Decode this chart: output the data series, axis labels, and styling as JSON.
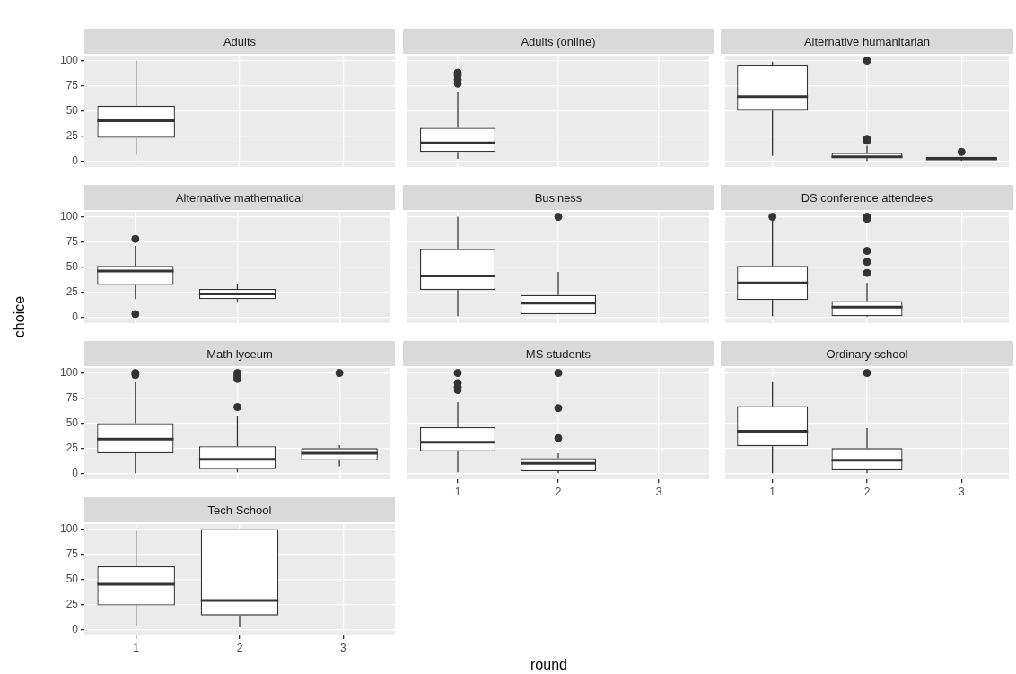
{
  "chart_data": [
    {
      "type": "box",
      "title": "Adults",
      "categories": [
        "1",
        "2",
        "3"
      ],
      "color": "#333333",
      "ylim": [
        -6,
        105
      ],
      "yticks": [
        0,
        25,
        50,
        75,
        100
      ],
      "grid": true,
      "tick_labels": "y",
      "boxes": [
        {
          "low": 6,
          "q1": 23,
          "median": 40,
          "q3": 55,
          "high": 100
        },
        null,
        null
      ]
    },
    {
      "type": "box",
      "title": "Adults (online)",
      "categories": [
        "1",
        "2",
        "3"
      ],
      "color": "#333333",
      "ylim": [
        -6,
        105
      ],
      "yticks": [
        0,
        25,
        50,
        75,
        100
      ],
      "grid": true,
      "tick_labels": false,
      "boxes": [
        {
          "low": 2,
          "q1": 9,
          "median": 18,
          "q3": 33,
          "high": 69,
          "outliers": [
            77,
            81,
            85,
            88
          ]
        },
        null,
        null
      ]
    },
    {
      "type": "box",
      "title": "Alternative humanitarian",
      "categories": [
        "1",
        "2",
        "3"
      ],
      "color": "#333333",
      "ylim": [
        -6,
        105
      ],
      "yticks": [
        0,
        25,
        50,
        75,
        100
      ],
      "grid": true,
      "tick_labels": false,
      "boxes": [
        {
          "low": 5,
          "q1": 50,
          "median": 64,
          "q3": 96,
          "high": 99
        },
        {
          "low": 0,
          "q1": 3,
          "median": 4,
          "q3": 8,
          "high": 15,
          "outliers": [
            20,
            22,
            100
          ]
        },
        {
          "low": 0,
          "q1": 1,
          "median": 2,
          "q3": 4,
          "high": 4,
          "outliers": [
            9
          ]
        }
      ]
    },
    {
      "type": "box",
      "title": "Alternative mathematical",
      "ylabel": "choice",
      "categories": [
        "1",
        "2",
        "3"
      ],
      "color": "#333333",
      "ylim": [
        -6,
        105
      ],
      "yticks": [
        0,
        25,
        50,
        75,
        100
      ],
      "grid": true,
      "tick_labels": "y",
      "boxes": [
        {
          "low": 18,
          "q1": 32,
          "median": 46,
          "q3": 51,
          "high": 71,
          "outliers": [
            3,
            78
          ]
        },
        {
          "low": 15,
          "q1": 18,
          "median": 23,
          "q3": 28,
          "high": 33
        },
        null
      ]
    },
    {
      "type": "box",
      "title": "Business",
      "categories": [
        "1",
        "2",
        "3"
      ],
      "color": "#333333",
      "ylim": [
        -6,
        105
      ],
      "yticks": [
        0,
        25,
        50,
        75,
        100
      ],
      "grid": true,
      "tick_labels": false,
      "boxes": [
        {
          "low": 1,
          "q1": 27,
          "median": 41,
          "q3": 68,
          "high": 100
        },
        {
          "low": 3,
          "q1": 3,
          "median": 14,
          "q3": 22,
          "high": 45,
          "outliers": [
            100
          ]
        },
        null
      ]
    },
    {
      "type": "box",
      "title": "DS conference attendees",
      "categories": [
        "1",
        "2",
        "3"
      ],
      "color": "#333333",
      "ylim": [
        -6,
        105
      ],
      "yticks": [
        0,
        25,
        50,
        75,
        100
      ],
      "grid": true,
      "tick_labels": false,
      "boxes": [
        {
          "low": 1,
          "q1": 17,
          "median": 34,
          "q3": 51,
          "high": 97,
          "outliers": [
            100
          ]
        },
        {
          "low": 0,
          "q1": 1,
          "median": 10,
          "q3": 16,
          "high": 34,
          "outliers": [
            44,
            55,
            66,
            98,
            100
          ]
        },
        null
      ]
    },
    {
      "type": "box",
      "title": "Math lyceum",
      "categories": [
        "1",
        "2",
        "3"
      ],
      "color": "#333333",
      "ylim": [
        -6,
        105
      ],
      "yticks": [
        0,
        25,
        50,
        75,
        100
      ],
      "grid": true,
      "tick_labels": "y",
      "boxes": [
        {
          "low": 0,
          "q1": 20,
          "median": 34,
          "q3": 50,
          "high": 91,
          "outliers": [
            98,
            100
          ]
        },
        {
          "low": 1,
          "q1": 4,
          "median": 14,
          "q3": 27,
          "high": 57,
          "outliers": [
            66,
            94,
            97,
            100
          ]
        },
        {
          "low": 7,
          "q1": 13,
          "median": 20,
          "q3": 25,
          "high": 28,
          "outliers": [
            100
          ]
        }
      ]
    },
    {
      "type": "box",
      "title": "MS students",
      "xlabel": "round",
      "categories": [
        "1",
        "2",
        "3"
      ],
      "color": "#333333",
      "ylim": [
        -6,
        105
      ],
      "yticks": [
        0,
        25,
        50,
        75,
        100
      ],
      "grid": true,
      "tick_labels": "x",
      "boxes": [
        {
          "low": 1,
          "q1": 22,
          "median": 31,
          "q3": 46,
          "high": 71,
          "outliers": [
            83,
            86,
            90,
            100
          ]
        },
        {
          "low": 0,
          "q1": 2,
          "median": 10,
          "q3": 15,
          "high": 20,
          "outliers": [
            35,
            65,
            100
          ]
        },
        null
      ]
    },
    {
      "type": "box",
      "title": "Ordinary school",
      "categories": [
        "1",
        "2",
        "3"
      ],
      "color": "#333333",
      "ylim": [
        -6,
        105
      ],
      "yticks": [
        0,
        25,
        50,
        75,
        100
      ],
      "grid": true,
      "tick_labels": "x",
      "boxes": [
        {
          "low": 0,
          "q1": 27,
          "median": 42,
          "q3": 67,
          "high": 91
        },
        {
          "low": 0,
          "q1": 3,
          "median": 13,
          "q3": 25,
          "high": 45,
          "outliers": [
            100
          ]
        },
        null
      ]
    },
    {
      "type": "box",
      "title": "Tech School",
      "categories": [
        "1",
        "2",
        "3"
      ],
      "color": "#333333",
      "ylim": [
        -6,
        105
      ],
      "yticks": [
        0,
        25,
        50,
        75,
        100
      ],
      "grid": true,
      "boxes": [
        {
          "low": 3,
          "q1": 24,
          "median": 45,
          "q3": 63,
          "high": 98
        },
        {
          "low": 2,
          "q1": 14,
          "median": 29,
          "q3": 100,
          "high": 100
        },
        null
      ]
    }
  ]
}
